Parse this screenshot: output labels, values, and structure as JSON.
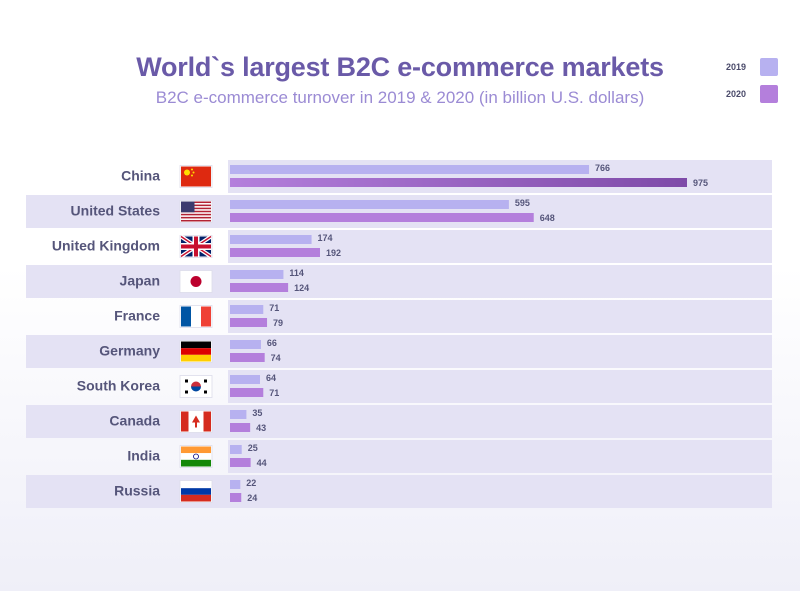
{
  "title": "World`s largest B2C e-commerce markets",
  "subtitle": "B2C e-commerce turnover in 2019 & 2020 (in billion U.S. dollars)",
  "colors": {
    "bar_2019": "#b7b1f0",
    "bar_2020": "#b47fdc",
    "bar_2020_highlight": "#7e4aa8",
    "band": "#e4e2f4",
    "row_label": "#55557a"
  },
  "chart_data": {
    "type": "bar",
    "orientation": "horizontal",
    "title": "World`s largest B2C e-commerce markets",
    "subtitle": "B2C e-commerce turnover in 2019 & 2020 (in billion U.S. dollars)",
    "categories": [
      "China",
      "United States",
      "United Kingdom",
      "Japan",
      "France",
      "Germany",
      "South Korea",
      "Canada",
      "India",
      "Russia"
    ],
    "series": [
      {
        "name": "2019",
        "values": [
          766,
          595,
          174,
          114,
          71,
          66,
          64,
          35,
          25,
          22
        ]
      },
      {
        "name": "2020",
        "values": [
          975,
          648,
          192,
          124,
          79,
          74,
          71,
          43,
          44,
          24
        ]
      }
    ],
    "legend": {
      "placement": "top-right",
      "entries": [
        "2019",
        "2020"
      ]
    },
    "grid": false,
    "flag_icons": [
      "china-flag-icon",
      "united-states-flag-icon",
      "united-kingdom-flag-icon",
      "japan-flag-icon",
      "france-flag-icon",
      "germany-flag-icon",
      "south-korea-flag-icon",
      "canada-flag-icon",
      "india-flag-icon",
      "russia-flag-icon"
    ]
  }
}
